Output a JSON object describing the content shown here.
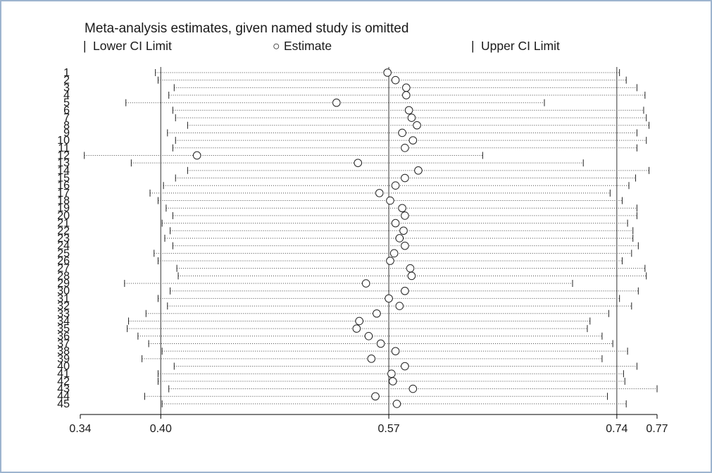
{
  "chart_data": {
    "type": "scatter",
    "title": "Meta-analysis estimates, given named study is omitted",
    "legend": {
      "lower": "Lower CI Limit",
      "estimate": "Estimate",
      "upper": "Upper CI Limit",
      "lower_symbol": "|",
      "estimate_symbol": "○",
      "upper_symbol": "|",
      "placement": "top"
    },
    "xlim": [
      0.34,
      0.77
    ],
    "xticks": [
      {
        "value": 0.34,
        "label": "0.34"
      },
      {
        "value": 0.4,
        "label": "0.40"
      },
      {
        "value": 0.57,
        "label": "0.57"
      },
      {
        "value": 0.74,
        "label": "0.74"
      },
      {
        "value": 0.77,
        "label": "0.77"
      }
    ],
    "reference_lines": [
      0.4,
      0.57,
      0.74
    ],
    "studies": [
      "1",
      "2",
      "3",
      "4",
      "5",
      "6",
      "7",
      "8",
      "9",
      "10",
      "11",
      "12",
      "13",
      "14",
      "15",
      "16",
      "17",
      "18",
      "19",
      "20",
      "21",
      "22",
      "23",
      "24",
      "25",
      "26",
      "27",
      "28",
      "29",
      "30",
      "31",
      "32",
      "33",
      "34",
      "35",
      "36",
      "37",
      "38",
      "39",
      "40",
      "41",
      "42",
      "43",
      "44",
      "45"
    ],
    "series": [
      {
        "name": "Lower CI Limit",
        "values": [
          0.396,
          0.398,
          0.41,
          0.406,
          0.374,
          0.409,
          0.411,
          0.42,
          0.405,
          0.411,
          0.409,
          0.343,
          0.378,
          0.42,
          0.411,
          0.402,
          0.392,
          0.398,
          0.404,
          0.409,
          0.401,
          0.407,
          0.403,
          0.409,
          0.395,
          0.398,
          0.412,
          0.413,
          0.373,
          0.407,
          0.398,
          0.405,
          0.389,
          0.376,
          0.375,
          0.383,
          0.391,
          0.401,
          0.386,
          0.41,
          0.398,
          0.398,
          0.406,
          0.388,
          0.401
        ]
      },
      {
        "name": "Estimate",
        "values": [
          0.569,
          0.575,
          0.583,
          0.583,
          0.531,
          0.585,
          0.587,
          0.591,
          0.58,
          0.588,
          0.582,
          0.427,
          0.547,
          0.592,
          0.582,
          0.575,
          0.563,
          0.571,
          0.58,
          0.582,
          0.575,
          0.581,
          0.578,
          0.582,
          0.574,
          0.571,
          0.586,
          0.587,
          0.553,
          0.582,
          0.57,
          0.578,
          0.561,
          0.548,
          0.546,
          0.555,
          0.564,
          0.575,
          0.557,
          0.582,
          0.572,
          0.573,
          0.588,
          0.56,
          0.576
        ]
      },
      {
        "name": "Upper CI Limit",
        "values": [
          0.742,
          0.747,
          0.755,
          0.761,
          0.686,
          0.76,
          0.762,
          0.764,
          0.755,
          0.762,
          0.755,
          0.64,
          0.715,
          0.764,
          0.754,
          0.749,
          0.735,
          0.744,
          0.755,
          0.755,
          0.748,
          0.752,
          0.752,
          0.756,
          0.751,
          0.744,
          0.761,
          0.762,
          0.707,
          0.756,
          0.742,
          0.751,
          0.734,
          0.72,
          0.718,
          0.729,
          0.737,
          0.748,
          0.729,
          0.755,
          0.745,
          0.746,
          0.77,
          0.733,
          0.747
        ]
      }
    ]
  }
}
